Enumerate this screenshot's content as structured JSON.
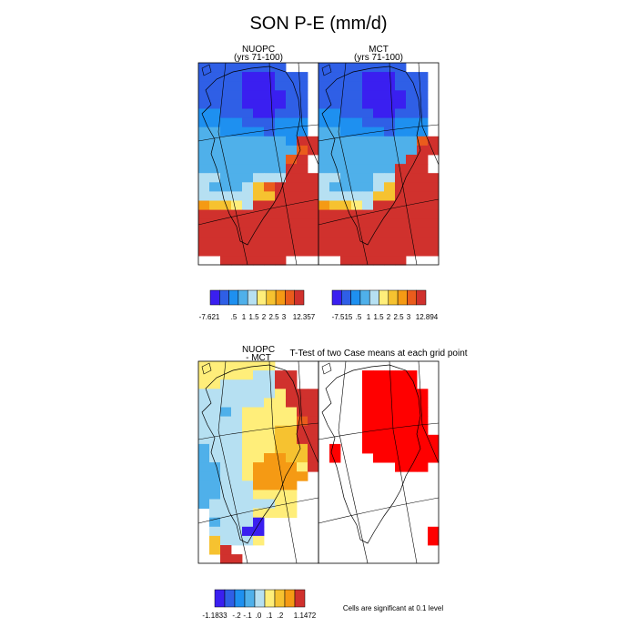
{
  "title": "SON P-E (mm/d)",
  "panels": {
    "nuopc": {
      "title": "NUOPC",
      "subtitle": "(yrs 71-100)"
    },
    "mct": {
      "title": "MCT",
      "subtitle": "(yrs 71-100)"
    },
    "diff": {
      "title_line1": "NUOPC",
      "title_line2": "- MCT"
    },
    "ttest": {
      "title": "T-Test of two Case means at each grid point",
      "note": "Cells are significant at 0.1 level"
    }
  },
  "colors": {
    "c0": "#3a1ff0",
    "c1": "#2f5fe6",
    "c2": "#1e90f0",
    "c3": "#4fb0ea",
    "c4": "#b6e0f2",
    "c5": "#ffee7a",
    "c6": "#f6c230",
    "c7": "#f59a14",
    "c8": "#ea5c1c",
    "c9": "#d0312d",
    "sig": "#ff0000"
  },
  "colorbars": {
    "nuopc": {
      "labels": [
        "-7.621",
        ".5",
        "1",
        "1.5",
        "2",
        "2.5",
        "3",
        "12.357"
      ]
    },
    "mct": {
      "labels": [
        "-7.515",
        ".5",
        "1",
        "1.5",
        "2",
        "2.5",
        "3",
        "12.894"
      ]
    },
    "diff": {
      "labels": [
        "-1.1833",
        "-.2",
        "-.1",
        ".0",
        ".1",
        ".2",
        "1.1472"
      ]
    }
  },
  "chart_data": [
    {
      "type": "heatmap",
      "title": "NUOPC",
      "subtitle": "(yrs 71-100)",
      "colorbar_ticks": [
        -7.621,
        0.5,
        1,
        1.5,
        2,
        2.5,
        3,
        12.357
      ]
    },
    {
      "type": "heatmap",
      "title": "MCT",
      "subtitle": "(yrs 71-100)",
      "colorbar_ticks": [
        -7.515,
        0.5,
        1,
        1.5,
        2,
        2.5,
        3,
        12.894
      ]
    },
    {
      "type": "heatmap",
      "title": "NUOPC - MCT",
      "colorbar_ticks": [
        -1.1833,
        -0.2,
        -0.1,
        0.0,
        0.1,
        0.2,
        1.1472
      ]
    },
    {
      "type": "heatmap",
      "title": "T-Test of two Case means at each grid point",
      "annotation": "Cells are significant at 0.1 level"
    }
  ]
}
